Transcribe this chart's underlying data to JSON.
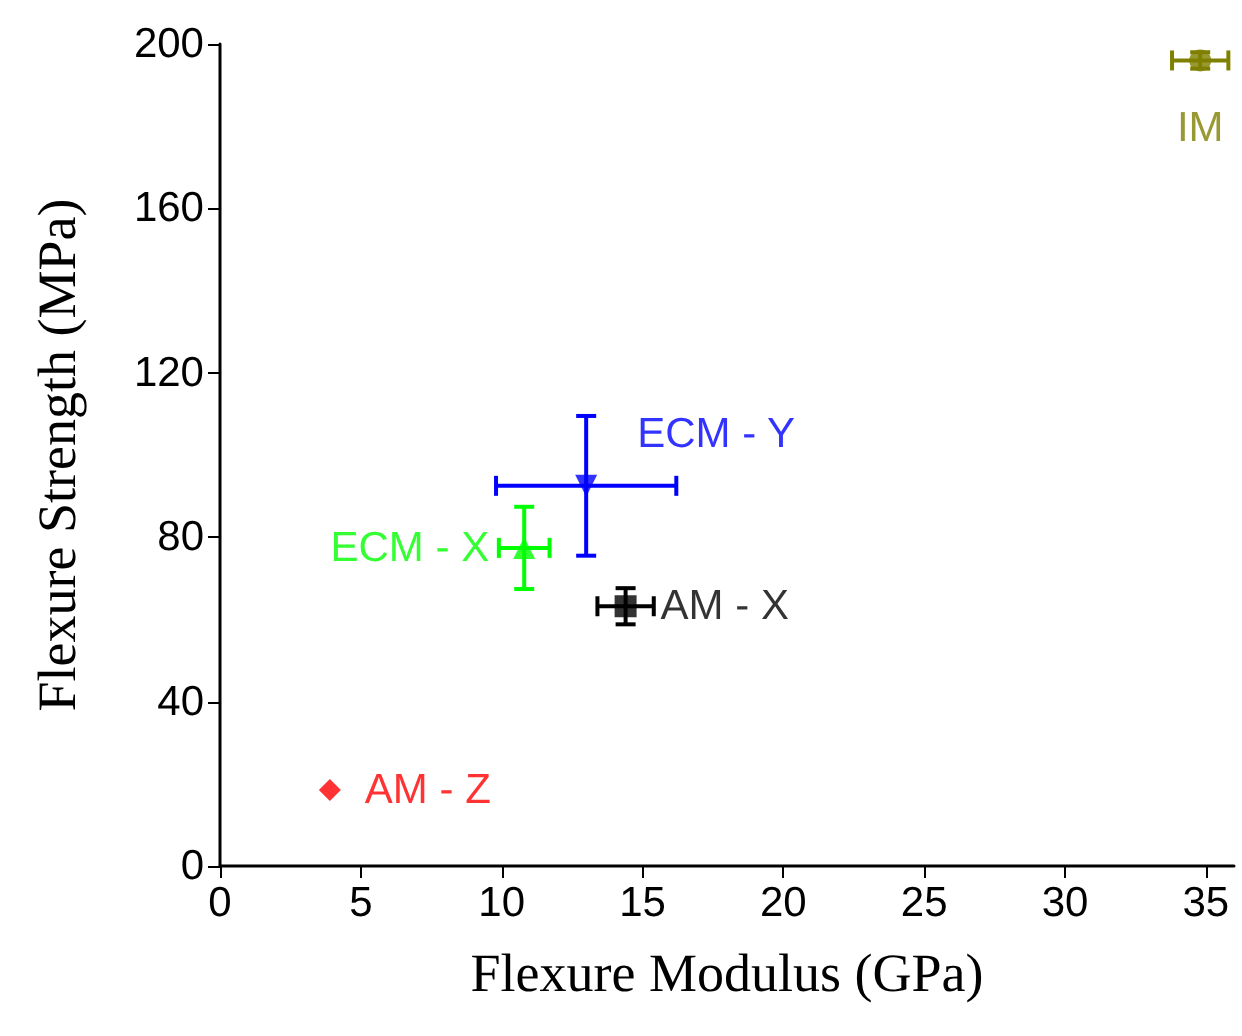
{
  "chart_data": {
    "type": "scatter",
    "xlabel": "Flexure Modulus (GPa)",
    "ylabel": "Flexure Strength (MPa)",
    "xlim": [
      0,
      36
    ],
    "xticks": [
      0,
      5,
      10,
      15,
      20,
      25,
      30,
      35
    ],
    "ylim": [
      0,
      200
    ],
    "yticks": [
      0,
      40,
      80,
      120,
      160,
      200
    ],
    "grid": false,
    "legend": false,
    "series": [
      {
        "name": "AM - Z",
        "color": "#ff0000",
        "marker": "diamond",
        "x": [
          3.9
        ],
        "values": [
          18.5
        ]
      },
      {
        "name": "ECM - X",
        "color": "#00ff00",
        "marker": "triangle",
        "x": [
          10.8
        ],
        "values": [
          77.4
        ],
        "errors": [
          10
        ],
        "xerrors": [
          0.9
        ]
      },
      {
        "name": "ECM - Y",
        "color": "#0000ff",
        "marker": "triangle",
        "x": [
          13.0
        ],
        "values": [
          92.5
        ],
        "errors": [
          17
        ],
        "xerrors": [
          3.2
        ]
      },
      {
        "name": "AM - X",
        "color": "#000000",
        "marker": "square",
        "x": [
          14.4
        ],
        "values": [
          63.2
        ],
        "errors": [
          4.4
        ],
        "xerrors": [
          1.0
        ]
      },
      {
        "name": "IM",
        "color": "#808000",
        "marker": "circle",
        "x": [
          34.8
        ],
        "values": [
          196
        ],
        "errors": [
          2
        ],
        "xerrors": [
          1.0
        ]
      }
    ]
  }
}
